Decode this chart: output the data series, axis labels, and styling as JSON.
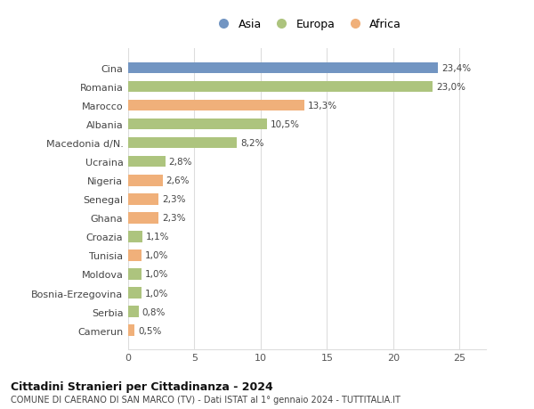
{
  "categories": [
    "Cina",
    "Romania",
    "Marocco",
    "Albania",
    "Macedonia d/N.",
    "Ucraina",
    "Nigeria",
    "Senegal",
    "Ghana",
    "Croazia",
    "Tunisia",
    "Moldova",
    "Bosnia-Erzegovina",
    "Serbia",
    "Camerun"
  ],
  "values": [
    23.4,
    23.0,
    13.3,
    10.5,
    8.2,
    2.8,
    2.6,
    2.3,
    2.3,
    1.1,
    1.0,
    1.0,
    1.0,
    0.8,
    0.5
  ],
  "labels": [
    "23,4%",
    "23,0%",
    "13,3%",
    "10,5%",
    "8,2%",
    "2,8%",
    "2,6%",
    "2,3%",
    "2,3%",
    "1,1%",
    "1,0%",
    "1,0%",
    "1,0%",
    "0,8%",
    "0,5%"
  ],
  "continents": [
    "Asia",
    "Europa",
    "Africa",
    "Europa",
    "Europa",
    "Europa",
    "Africa",
    "Africa",
    "Africa",
    "Europa",
    "Africa",
    "Europa",
    "Europa",
    "Europa",
    "Africa"
  ],
  "colors": {
    "Asia": "#7295c2",
    "Europa": "#adc47e",
    "Africa": "#f0b07a"
  },
  "title": "Cittadini Stranieri per Cittadinanza - 2024",
  "subtitle": "COMUNE DI CAERANO DI SAN MARCO (TV) - Dati ISTAT al 1° gennaio 2024 - TUTTITALIA.IT",
  "xlim": [
    0,
    27
  ],
  "xticks": [
    0,
    5,
    10,
    15,
    20,
    25
  ],
  "bar_height": 0.6,
  "bg_color": "#ffffff",
  "grid_color": "#dddddd"
}
